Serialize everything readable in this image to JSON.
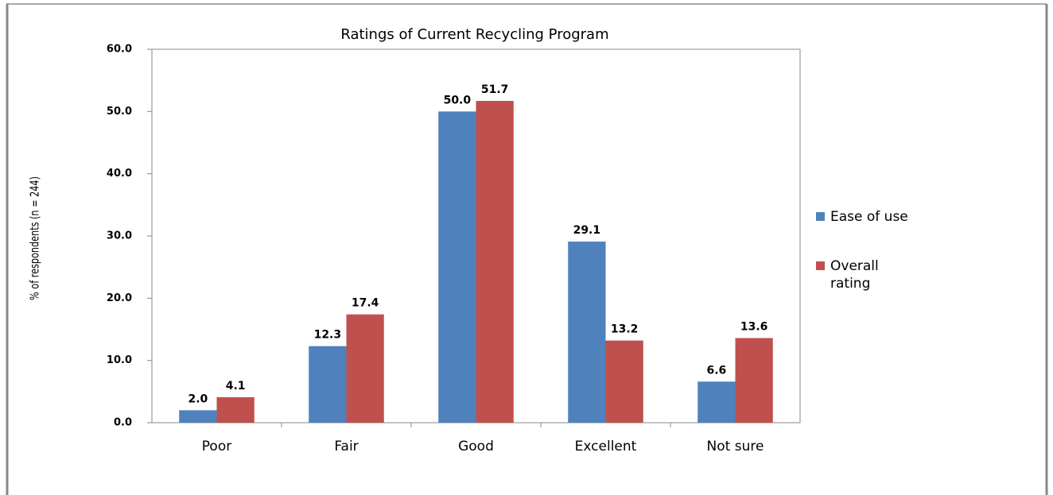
{
  "chart_data": {
    "type": "bar",
    "title": "Ratings of Current Recycling Program",
    "y_label": "% of respondents (n = 244)",
    "categories": [
      "Poor",
      "Fair",
      "Good",
      "Excellent",
      "Not sure"
    ],
    "series": [
      {
        "name": "Ease of use",
        "color": "#4f81bd",
        "values": [
          2.0,
          12.3,
          50.0,
          29.1,
          6.6
        ],
        "value_labels": [
          "2.0",
          "12.3",
          "50.0",
          "29.1",
          "6.6"
        ]
      },
      {
        "name": "Overall rating",
        "color": "#c0504d",
        "values": [
          4.1,
          17.4,
          51.7,
          13.2,
          13.6
        ],
        "value_labels": [
          "4.1",
          "17.4",
          "51.7",
          "13.2",
          "13.6"
        ]
      }
    ],
    "ylim": [
      0,
      60
    ],
    "yticks": [
      {
        "value": 0,
        "label": "0.0"
      },
      {
        "value": 10,
        "label": "10.0"
      },
      {
        "value": 20,
        "label": "20.0"
      },
      {
        "value": 30,
        "label": "30.0"
      },
      {
        "value": 40,
        "label": "40.0"
      },
      {
        "value": 50,
        "label": "50.0"
      },
      {
        "value": 60,
        "label": "60.0"
      }
    ],
    "legend": "right",
    "grid": false
  }
}
